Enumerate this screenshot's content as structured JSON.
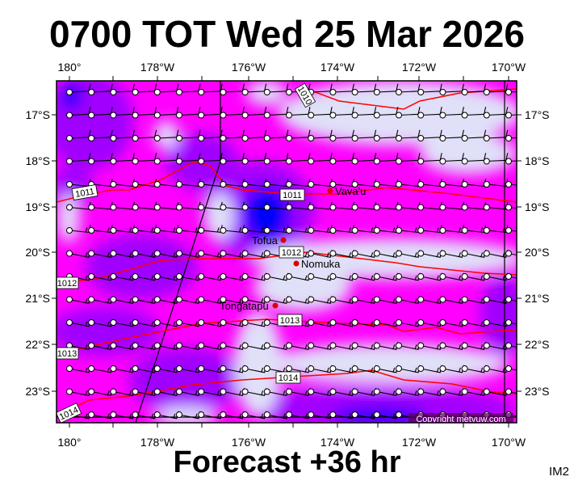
{
  "title": "0700 TOT Wed 25 Mar 2026",
  "footer": "Forecast +36 hr",
  "tag": "IM2",
  "copyright": "Copyright metvuw.com",
  "axes": {
    "lon_labels": [
      "180°",
      "178°W",
      "176°W",
      "174°W",
      "172°W",
      "170°W"
    ],
    "lat_labels": [
      "17°S",
      "18°S",
      "19°S",
      "20°S",
      "21°S",
      "22°S",
      "23°S"
    ]
  },
  "places": [
    {
      "name": "Vava'u"
    },
    {
      "name": "Tofua"
    },
    {
      "name": "Nomuka"
    },
    {
      "name": "Tongatapu"
    }
  ],
  "isobars": [
    "1010",
    "1011",
    "1011",
    "1012",
    "1012",
    "1013",
    "1013",
    "1014",
    "1014"
  ],
  "colors": {
    "magenta": "#ff00ff",
    "lavender": "#e0e0f8",
    "purple": "#a000ff",
    "violet": "#7a00ff",
    "blue": "#0000ff",
    "isobar": "#ff0000",
    "place": "#e00000"
  }
}
